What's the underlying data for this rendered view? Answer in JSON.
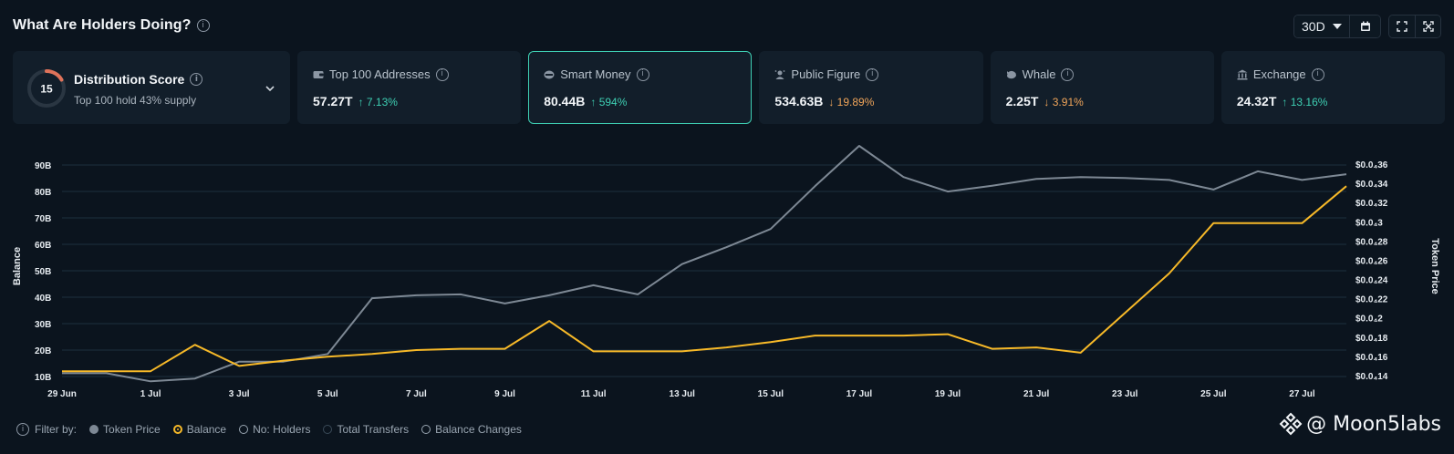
{
  "header": {
    "title": "What Are Holders Doing?"
  },
  "controls": {
    "range": "30D"
  },
  "distribution": {
    "score": "15",
    "title": "Distribution Score",
    "subtitle": "Top 100 hold 43% supply"
  },
  "cards": [
    {
      "label": "Top 100 Addresses",
      "value": "57.27T",
      "change": "↑ 7.13%",
      "direction": "up",
      "icon": "wallet-icon"
    },
    {
      "label": "Smart Money",
      "value": "80.44B",
      "change": "↑ 594%",
      "direction": "up",
      "icon": "brain-icon"
    },
    {
      "label": "Public Figure",
      "value": "534.63B",
      "change": "↓ 19.89%",
      "direction": "down",
      "icon": "person-icon"
    },
    {
      "label": "Whale",
      "value": "2.25T",
      "change": "↓ 3.91%",
      "direction": "down",
      "icon": "whale-icon"
    },
    {
      "label": "Exchange",
      "value": "24.32T",
      "change": "↑ 13.16%",
      "direction": "up",
      "icon": "bank-icon"
    }
  ],
  "colors": {
    "accent": "#3ecfb3",
    "up": "#3ecfb3",
    "down": "#f2a65a",
    "balance": "#f7b928",
    "price": "#7d8894"
  },
  "chart_data": {
    "type": "line",
    "ylabel": "Balance",
    "y2label": "Token Price",
    "x": [
      "29 Jun",
      "30 Jun",
      "1 Jul",
      "2 Jul",
      "3 Jul",
      "4 Jul",
      "5 Jul",
      "6 Jul",
      "7 Jul",
      "8 Jul",
      "9 Jul",
      "10 Jul",
      "11 Jul",
      "12 Jul",
      "13 Jul",
      "14 Jul",
      "15 Jul",
      "16 Jul",
      "17 Jul",
      "18 Jul",
      "19 Jul",
      "20 Jul",
      "21 Jul",
      "22 Jul",
      "23 Jul",
      "24 Jul",
      "25 Jul",
      "26 Jul",
      "27 Jul",
      "28 Jul"
    ],
    "x_tick_labels": [
      "29 Jun",
      "1 Jul",
      "3 Jul",
      "5 Jul",
      "7 Jul",
      "9 Jul",
      "11 Jul",
      "13 Jul",
      "15 Jul",
      "17 Jul",
      "19 Jul",
      "21 Jul",
      "23 Jul",
      "25 Jul",
      "27 Jul"
    ],
    "y_ticks": [
      "10B",
      "20B",
      "30B",
      "40B",
      "50B",
      "60B",
      "70B",
      "80B",
      "90B"
    ],
    "y2_ticks": [
      "$0.0₄14",
      "$0.0₄16",
      "$0.0₄18",
      "$0.0₄2",
      "$0.0₄22",
      "$0.0₄24",
      "$0.0₄26",
      "$0.0₄28",
      "$0.0₄3",
      "$0.0₄32",
      "$0.0₄34",
      "$0.0₄36"
    ],
    "ylim": [
      10,
      90
    ],
    "y2lim": [
      0.14,
      0.36
    ],
    "grid": true,
    "series": [
      {
        "name": "Balance",
        "axis": "left",
        "values": [
          12,
          12,
          12,
          22,
          14,
          16,
          17.5,
          18.5,
          20,
          20.5,
          20.5,
          31,
          19.5,
          19.5,
          19.5,
          21,
          23,
          25.5,
          25.5,
          25.5,
          26,
          20.5,
          21,
          19,
          34,
          49,
          68,
          68,
          68,
          82
        ]
      },
      {
        "name": "Token Price",
        "axis": "right",
        "values": [
          0.1425,
          0.1425,
          0.134,
          0.137,
          0.1545,
          0.1545,
          0.1625,
          0.2205,
          0.2235,
          0.2245,
          0.215,
          0.2235,
          0.234,
          0.2245,
          0.256,
          0.2735,
          0.2925,
          0.337,
          0.379,
          0.3465,
          0.3315,
          0.3375,
          0.3445,
          0.3465,
          0.3455,
          0.3435,
          0.3335,
          0.3525,
          0.3435,
          0.3495
        ]
      }
    ]
  },
  "filter": {
    "label": "Filter by:",
    "items": [
      {
        "label": "Token Price",
        "state": "filled-grey"
      },
      {
        "label": "Balance",
        "state": "selected"
      },
      {
        "label": "No: Holders",
        "state": "empty"
      },
      {
        "label": "Total Transfers",
        "state": "empty-dark"
      },
      {
        "label": "Balance Changes",
        "state": "empty"
      }
    ]
  },
  "watermark": {
    "text": "@ Moon5labs"
  }
}
